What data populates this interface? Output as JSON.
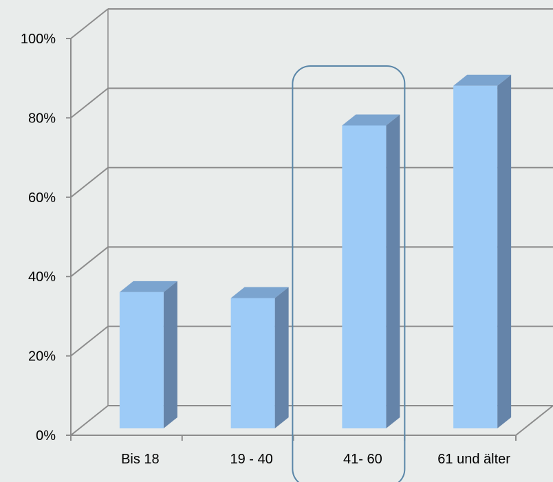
{
  "chart_data": {
    "type": "bar",
    "style": "3d-column",
    "categories": [
      "Bis 18",
      "19 - 40",
      "41- 60",
      "61 und älter"
    ],
    "values": [
      34,
      32.5,
      76,
      86
    ],
    "value_unit": "%",
    "ylim": [
      0,
      100
    ],
    "yticks": [
      "0%",
      "20%",
      "40%",
      "60%",
      "80%",
      "100%"
    ],
    "grid": true,
    "legend": "none",
    "highlighted_category": "41- 60",
    "colors": {
      "bar_front": "#9dcbf7",
      "bar_top": "#7ba4cf",
      "bar_side": "#6584a9",
      "grid": "#8c8c8c",
      "highlight_outline": "#5a86a8",
      "background": "#e9eceb"
    }
  }
}
